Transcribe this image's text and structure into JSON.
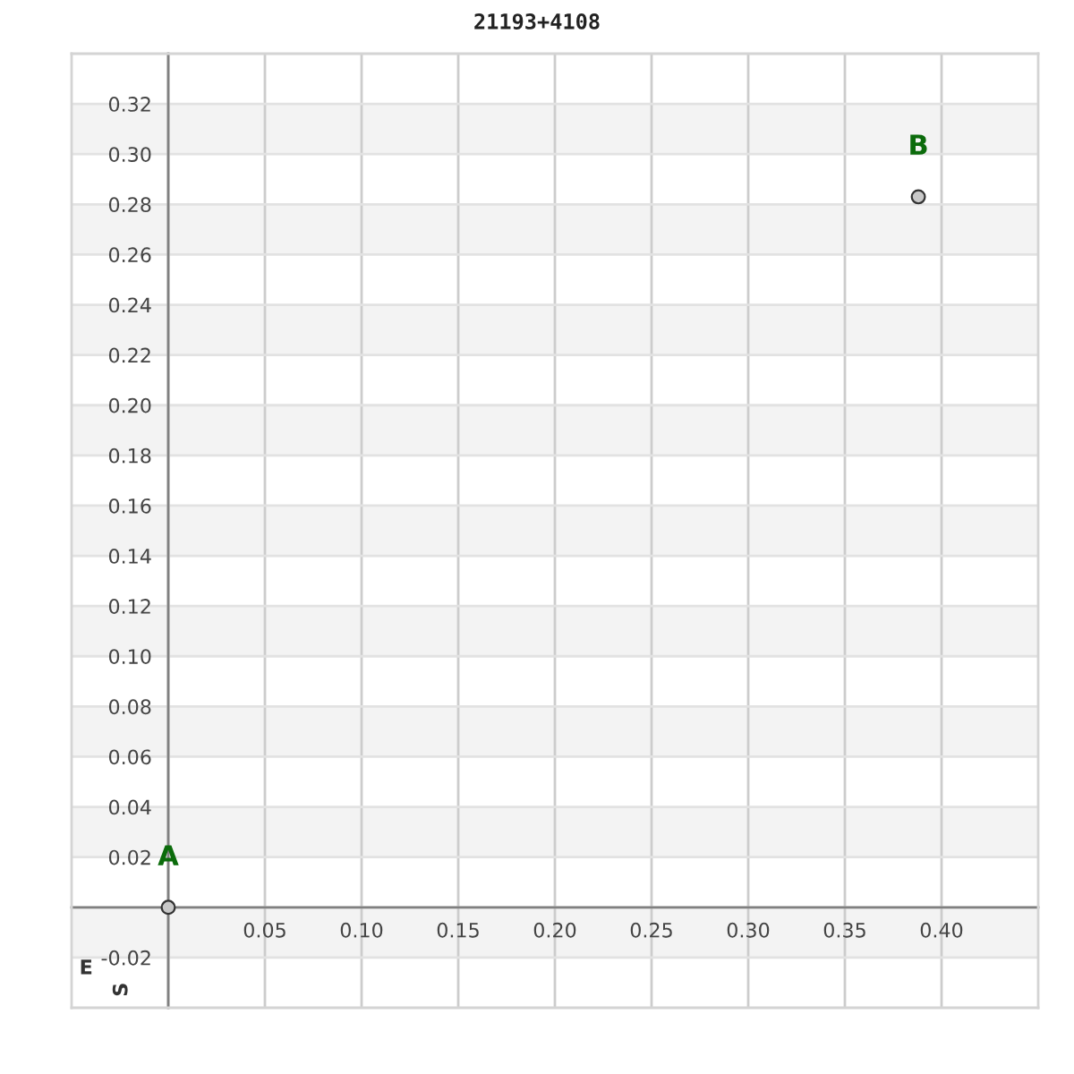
{
  "chart_data": {
    "type": "scatter",
    "title": "21193+4108",
    "xlabel": "E",
    "ylabel": "S",
    "x": [
      0,
      0.388
    ],
    "values": [
      0,
      0.283
    ],
    "color": "#c8c8c8",
    "marker": "circle",
    "annotations": [
      {
        "text": "A",
        "x": 0,
        "y": 0
      },
      {
        "text": "B",
        "x": 0.388,
        "y": 0.283
      }
    ],
    "xlim": [
      -0.05,
      0.45
    ],
    "ylim": [
      -0.04,
      0.34
    ],
    "xticks": [
      {
        "value": 0,
        "label": null
      },
      {
        "value": 0.05,
        "label": "0.05"
      },
      {
        "value": 0.1,
        "label": "0.10"
      },
      {
        "value": 0.15,
        "label": "0.15"
      },
      {
        "value": 0.2,
        "label": "0.20"
      },
      {
        "value": 0.25,
        "label": "0.25"
      },
      {
        "value": 0.3,
        "label": "0.30"
      },
      {
        "value": 0.35,
        "label": "0.35"
      },
      {
        "value": 0.4,
        "label": "0.40"
      }
    ],
    "yticks": [
      {
        "value": -0.02,
        "label": "-0.02"
      },
      {
        "value": 0,
        "label": null
      },
      {
        "value": 0.02,
        "label": "0.02"
      },
      {
        "value": 0.04,
        "label": "0.04"
      },
      {
        "value": 0.06,
        "label": "0.06"
      },
      {
        "value": 0.08,
        "label": "0.08"
      },
      {
        "value": 0.1,
        "label": "0.10"
      },
      {
        "value": 0.12,
        "label": "0.12"
      },
      {
        "value": 0.14,
        "label": "0.14"
      },
      {
        "value": 0.16,
        "label": "0.16"
      },
      {
        "value": 0.18,
        "label": "0.18"
      },
      {
        "value": 0.2,
        "label": "0.20"
      },
      {
        "value": 0.22,
        "label": "0.22"
      },
      {
        "value": 0.24,
        "label": "0.24"
      },
      {
        "value": 0.26,
        "label": "0.26"
      },
      {
        "value": 0.28,
        "label": "0.28"
      },
      {
        "value": 0.3,
        "label": "0.30"
      },
      {
        "value": 0.32,
        "label": "0.32"
      }
    ],
    "grid": true,
    "bands": [
      {
        "axis": "y",
        "from": -0.02,
        "to": 0,
        "color": "#f3f3f3"
      },
      {
        "axis": "y",
        "from": 0.02,
        "to": 0.04,
        "color": "#f3f3f3"
      },
      {
        "axis": "y",
        "from": 0.06,
        "to": 0.08,
        "color": "#f3f3f3"
      },
      {
        "axis": "y",
        "from": 0.1,
        "to": 0.12,
        "color": "#f3f3f3"
      },
      {
        "axis": "y",
        "from": 0.14,
        "to": 0.16,
        "color": "#f3f3f3"
      },
      {
        "axis": "y",
        "from": 0.18,
        "to": 0.2,
        "color": "#f3f3f3"
      },
      {
        "axis": "y",
        "from": 0.22,
        "to": 0.24,
        "color": "#f3f3f3"
      },
      {
        "axis": "y",
        "from": 0.26,
        "to": 0.28,
        "color": "#f3f3f3"
      },
      {
        "axis": "y",
        "from": 0.3,
        "to": 0.32,
        "color": "#f3f3f3"
      }
    ]
  }
}
